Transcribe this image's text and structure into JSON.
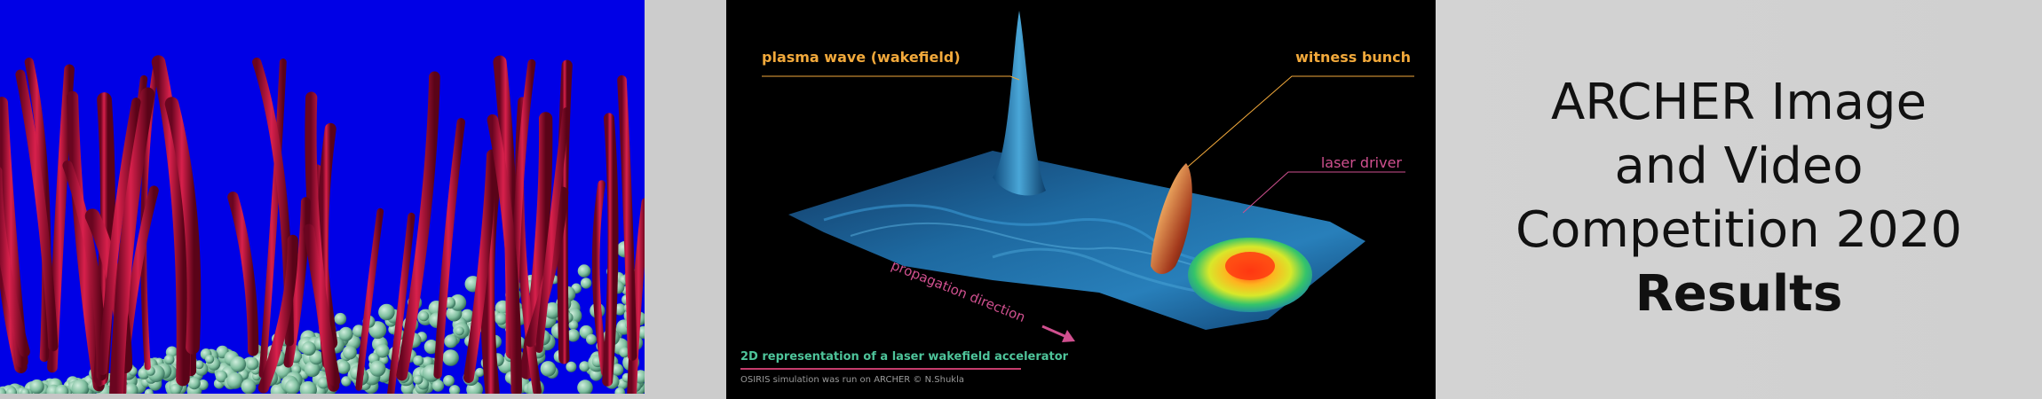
{
  "right_panel": {
    "title_line1": "ARCHER Image",
    "title_line2": "and Video",
    "title_line3": "Competition 2020",
    "title_line4": "Results"
  },
  "middle_panel": {
    "label_plasma_wave": "plasma wave (wakefield)",
    "label_witness_bunch": "witness bunch",
    "label_laser_driver": "laser driver",
    "label_propagation": "propagation direction",
    "caption": "2D representation of a laser wakefield accelerator",
    "credit": "OSIRIS simulation was run on ARCHER  © N.Shukla"
  },
  "colors": {
    "left_background": "#0000e6",
    "tube_color": "#c0143c",
    "sphere_color": "#7fbf9f",
    "mid_background": "#000000",
    "label_orange": "#f2a93b",
    "label_pink": "#d0508f",
    "caption_green": "#4ec49a"
  }
}
